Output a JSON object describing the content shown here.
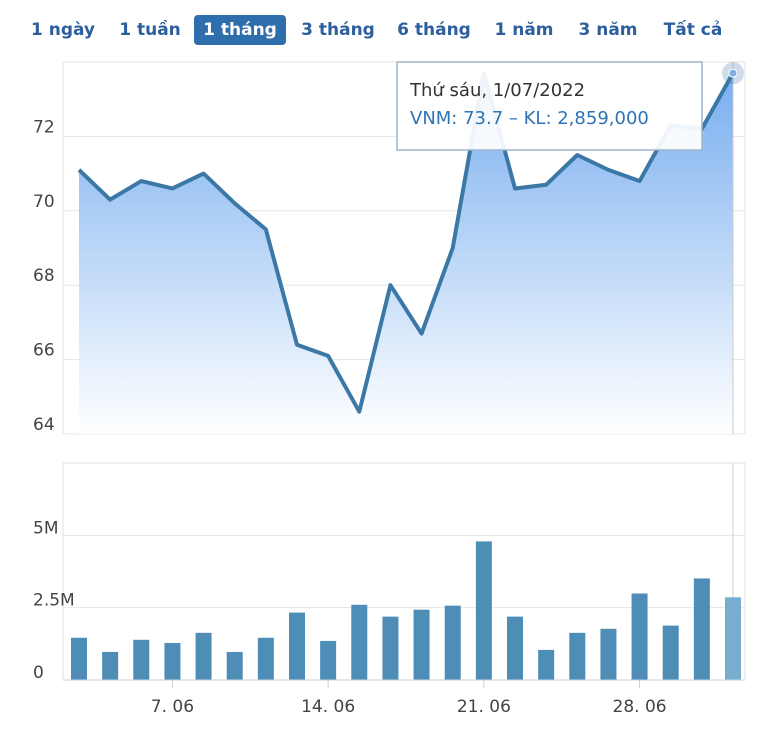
{
  "range_buttons": [
    "1 ngày",
    "1 tuần",
    "1 tháng",
    "3 tháng",
    "6 tháng",
    "1 năm",
    "3 năm",
    "Tất cả"
  ],
  "selected_range": 2,
  "tooltip": {
    "date": "Thứ sáu, 1/07/2022",
    "text": "VNM: 73.7 – KL: 2,859,000"
  },
  "chart_data": [
    {
      "type": "area",
      "color": "#3b78a6",
      "values": [
        71.1,
        70.3,
        70.8,
        70.6,
        71.0,
        70.2,
        69.5,
        66.4,
        66.1,
        64.6,
        68.0,
        66.7,
        69.0,
        73.7,
        70.6,
        70.7,
        71.5,
        71.1,
        70.8,
        72.3,
        72.2,
        73.7
      ],
      "highlight_index": 21,
      "ylim": [
        64,
        74
      ],
      "yticks": [
        64,
        66,
        68,
        70,
        72
      ],
      "grid": true
    },
    {
      "type": "bar",
      "color": "#4e8db5",
      "highlight_color": "#79add0",
      "highlight_index": 21,
      "categories": [
        null,
        null,
        null,
        "7. 06",
        null,
        null,
        null,
        null,
        "14. 06",
        null,
        null,
        null,
        null,
        "21. 06",
        null,
        null,
        null,
        null,
        "28. 06",
        null,
        null,
        null
      ],
      "values": [
        1460000,
        970000,
        1390000,
        1280000,
        1630000,
        970000,
        1460000,
        2330000,
        1350000,
        2600000,
        2190000,
        2430000,
        2570000,
        4790000,
        2190000,
        1040000,
        1630000,
        1770000,
        2990000,
        1880000,
        3510000,
        2859000
      ],
      "ylim": [
        0,
        7500000
      ],
      "yticks": [
        0,
        {
          "value": 2500000,
          "label": "2.5M"
        },
        {
          "value": 5000000,
          "label": "5M"
        }
      ],
      "grid": true
    }
  ]
}
